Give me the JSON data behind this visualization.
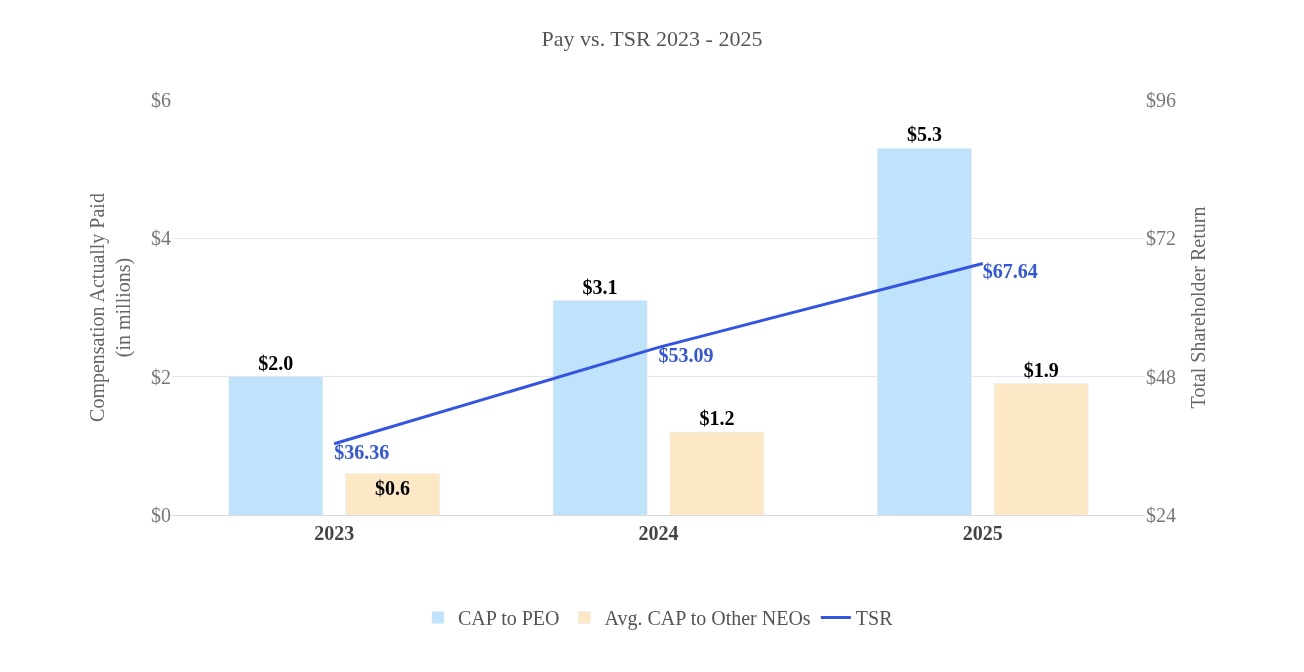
{
  "chart_data": {
    "type": "bar",
    "title": "Pay vs. TSR 2023 - 2025",
    "categories": [
      "2023",
      "2024",
      "2025"
    ],
    "ylabel": "Compensation Actually Paid\n(in millions)",
    "y2label": "Total Shareholder Return",
    "ylim": [
      0,
      6
    ],
    "yticks": [
      {
        "value": 0,
        "label": "$0"
      },
      {
        "value": 2,
        "label": "$2"
      },
      {
        "value": 4,
        "label": "$4"
      },
      {
        "value": 6,
        "label": "$6"
      }
    ],
    "y2lim": [
      24,
      96
    ],
    "y2ticks": [
      {
        "value": 24,
        "label": "$24"
      },
      {
        "value": 48,
        "label": "$48"
      },
      {
        "value": 72,
        "label": "$72"
      },
      {
        "value": 96,
        "label": "$96"
      }
    ],
    "series": [
      {
        "name": "CAP to PEO",
        "color": "#bfe3fb",
        "values": [
          2.0,
          3.1,
          5.3
        ],
        "value_labels": [
          "$2.0",
          "$3.1",
          "$5.3"
        ]
      },
      {
        "name": "Avg. CAP to Other NEOs",
        "color": "#fde8c6",
        "values": [
          0.6,
          1.2,
          1.9
        ],
        "value_labels": [
          "$0.6",
          "$1.2",
          "$1.9"
        ]
      },
      {
        "name": "TSR",
        "type": "line",
        "axis": "y2",
        "color": "#3355e0",
        "values": [
          36.36,
          53.09,
          67.64
        ],
        "value_labels": [
          "$36.36",
          "$53.09",
          "$67.64"
        ]
      }
    ],
    "grid": "y",
    "legend": "bottom",
    "marker": "none",
    "line_style": "solid"
  }
}
